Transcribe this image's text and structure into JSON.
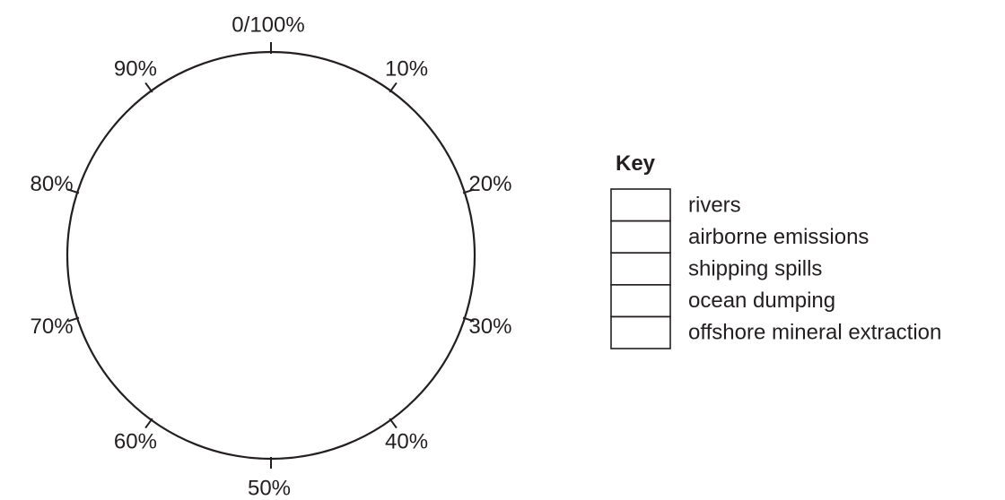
{
  "diagram": {
    "type": "blank-pie-chart-template",
    "percent_ticks": [
      {
        "value": 0,
        "label": "0/100%"
      },
      {
        "value": 10,
        "label": "10%"
      },
      {
        "value": 20,
        "label": "20%"
      },
      {
        "value": 30,
        "label": "30%"
      },
      {
        "value": 40,
        "label": "40%"
      },
      {
        "value": 50,
        "label": "50%"
      },
      {
        "value": 60,
        "label": "60%"
      },
      {
        "value": 70,
        "label": "70%"
      },
      {
        "value": 80,
        "label": "80%"
      },
      {
        "value": 90,
        "label": "90%"
      }
    ],
    "key": {
      "title": "Key",
      "items": [
        {
          "label": "rivers"
        },
        {
          "label": "airborne emissions"
        },
        {
          "label": "shipping spills"
        },
        {
          "label": "ocean dumping"
        },
        {
          "label": "offshore mineral extraction"
        }
      ]
    },
    "colors": {
      "stroke": "#231f20",
      "background": "#ffffff"
    }
  }
}
